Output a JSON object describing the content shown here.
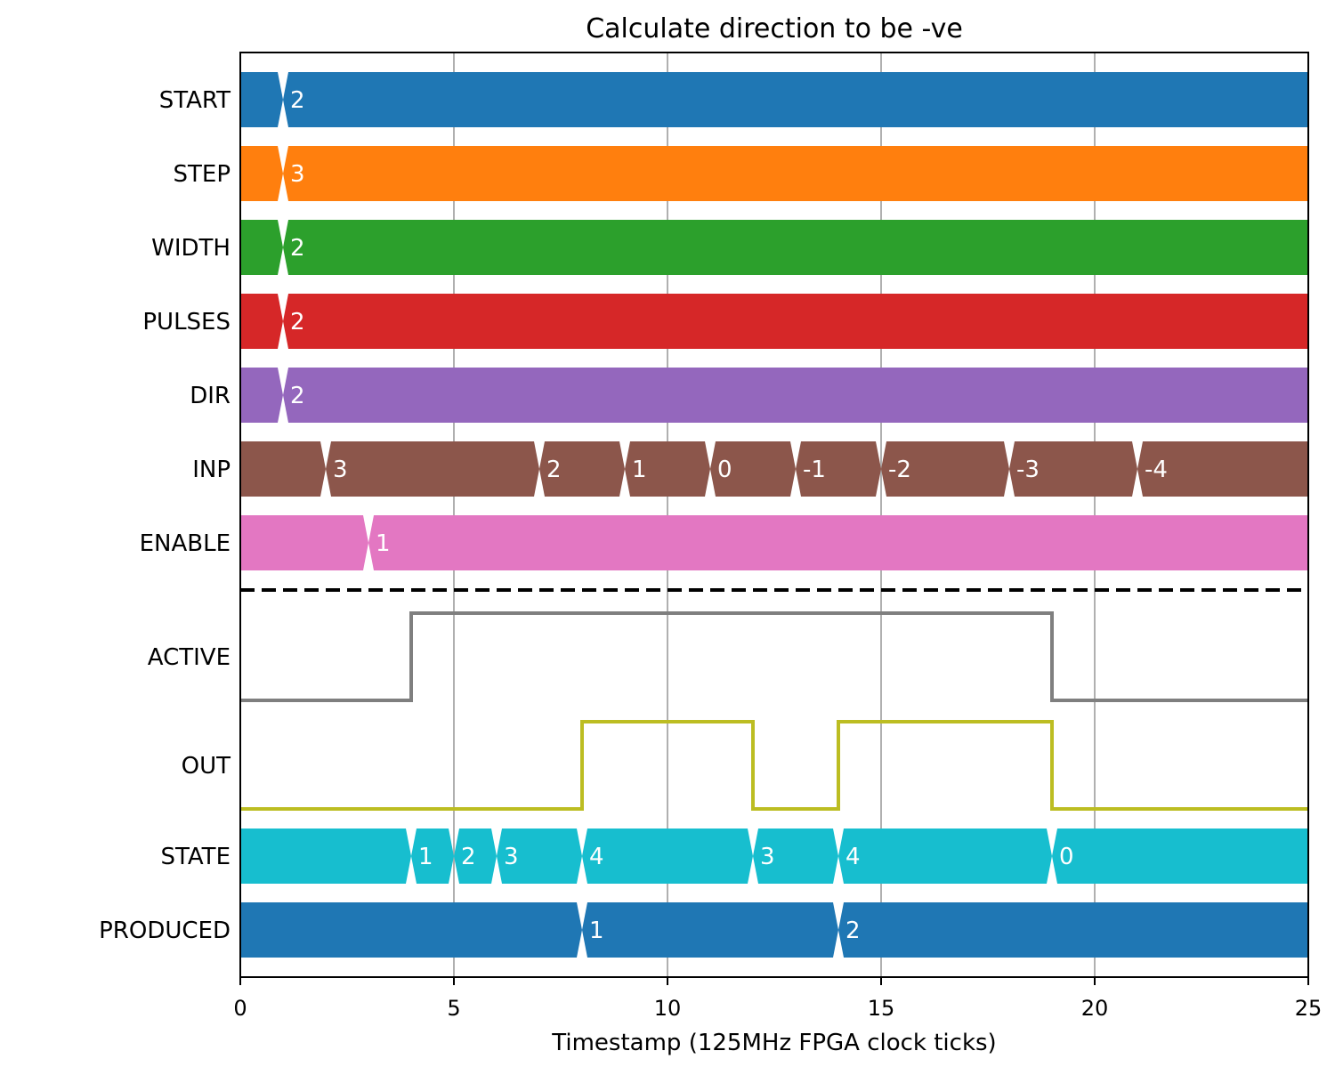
{
  "chart_data": {
    "type": "timing-diagram",
    "title": "Calculate direction to be -ve",
    "xlabel": "Timestamp (125MHz FPGA clock ticks)",
    "xlim": [
      0,
      25
    ],
    "xticks": [
      0,
      5,
      10,
      15,
      20,
      25
    ],
    "grid": "vertical",
    "bus_rows": [
      {
        "name": "START",
        "color": "#1f77b4",
        "segments": [
          {
            "start": 0,
            "value": ""
          },
          {
            "start": 1,
            "value": "2"
          }
        ]
      },
      {
        "name": "STEP",
        "color": "#ff7f0e",
        "segments": [
          {
            "start": 0,
            "value": ""
          },
          {
            "start": 1,
            "value": "3"
          }
        ]
      },
      {
        "name": "WIDTH",
        "color": "#2ca02c",
        "segments": [
          {
            "start": 0,
            "value": ""
          },
          {
            "start": 1,
            "value": "2"
          }
        ]
      },
      {
        "name": "PULSES",
        "color": "#d62728",
        "segments": [
          {
            "start": 0,
            "value": ""
          },
          {
            "start": 1,
            "value": "2"
          }
        ]
      },
      {
        "name": "DIR",
        "color": "#9467bd",
        "segments": [
          {
            "start": 0,
            "value": ""
          },
          {
            "start": 1,
            "value": "2"
          }
        ]
      },
      {
        "name": "INP",
        "color": "#8c564b",
        "segments": [
          {
            "start": 0,
            "value": ""
          },
          {
            "start": 2,
            "value": "3"
          },
          {
            "start": 7,
            "value": "2"
          },
          {
            "start": 9,
            "value": "1"
          },
          {
            "start": 11,
            "value": "0"
          },
          {
            "start": 13,
            "value": "-1"
          },
          {
            "start": 15,
            "value": "-2"
          },
          {
            "start": 18,
            "value": "-3"
          },
          {
            "start": 21,
            "value": "-4"
          }
        ]
      },
      {
        "name": "ENABLE",
        "color": "#e377c2",
        "segments": [
          {
            "start": 0,
            "value": ""
          },
          {
            "start": 3,
            "value": "1"
          }
        ]
      }
    ],
    "bit_rows": [
      {
        "name": "ACTIVE",
        "color": "#7f7f7f",
        "steps": [
          [
            0,
            0
          ],
          [
            4,
            1
          ],
          [
            19,
            0
          ],
          [
            25,
            0
          ]
        ]
      },
      {
        "name": "OUT",
        "color": "#bcbd22",
        "steps": [
          [
            0,
            0
          ],
          [
            8,
            1
          ],
          [
            12,
            0
          ],
          [
            14,
            1
          ],
          [
            19,
            0
          ],
          [
            25,
            0
          ]
        ]
      }
    ],
    "output_bus_rows": [
      {
        "name": "STATE",
        "color": "#17becf",
        "segments": [
          {
            "start": 0,
            "value": ""
          },
          {
            "start": 4,
            "value": "1"
          },
          {
            "start": 5,
            "value": "2"
          },
          {
            "start": 6,
            "value": "3"
          },
          {
            "start": 8,
            "value": "4"
          },
          {
            "start": 12,
            "value": "3"
          },
          {
            "start": 14,
            "value": "4"
          },
          {
            "start": 19,
            "value": "0"
          }
        ]
      },
      {
        "name": "PRODUCED",
        "color": "#1f77b4",
        "segments": [
          {
            "start": 0,
            "value": ""
          },
          {
            "start": 8,
            "value": "1"
          },
          {
            "start": 14,
            "value": "2"
          }
        ]
      }
    ]
  }
}
